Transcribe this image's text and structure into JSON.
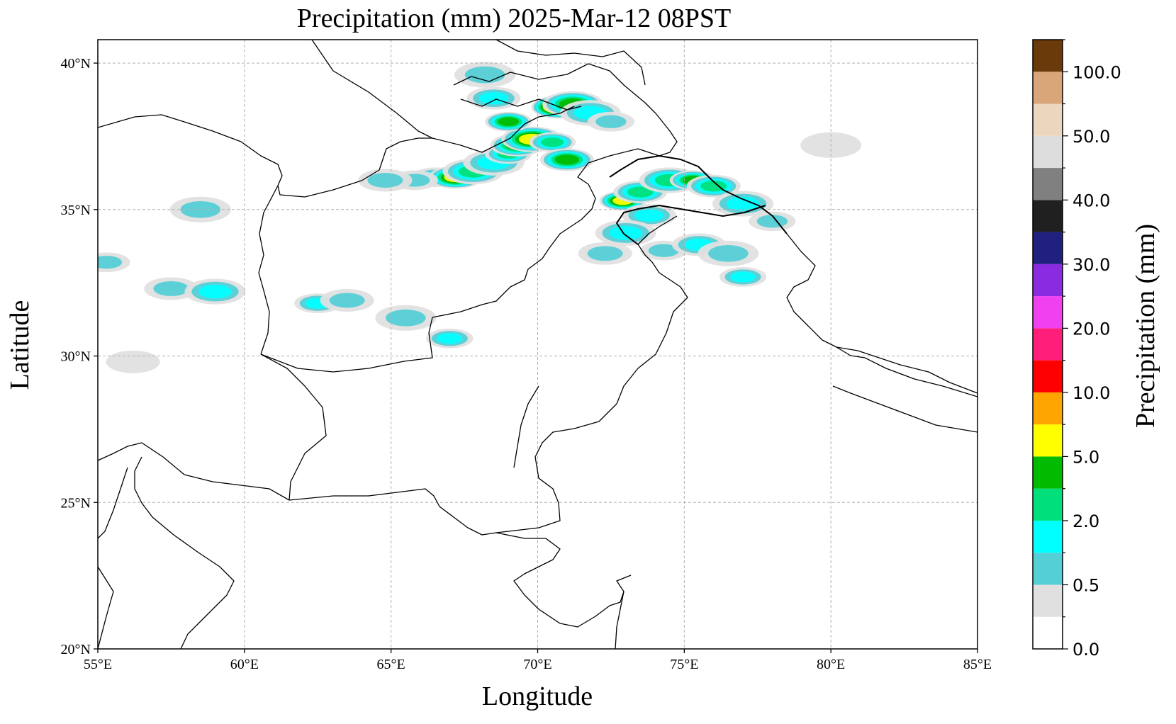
{
  "figure": {
    "title": "Precipitation (mm)  2025-Mar-12 08PST",
    "xlabel": "Longitude",
    "ylabel": "Latitude"
  },
  "chart_data": {
    "type": "heatmap",
    "title": "Precipitation (mm)  2025-Mar-12 08PST",
    "xlabel": "Longitude",
    "ylabel": "Latitude",
    "xlim": [
      55,
      85
    ],
    "ylim": [
      20,
      40.8
    ],
    "grid": true,
    "x_ticks": [
      55,
      60,
      65,
      70,
      75,
      80,
      85
    ],
    "x_tick_labels": [
      "55°E",
      "60°E",
      "65°E",
      "70°E",
      "75°E",
      "80°E",
      "85°E"
    ],
    "y_ticks": [
      20,
      25,
      30,
      35,
      40
    ],
    "y_tick_labels": [
      "20°N",
      "25°N",
      "30°N",
      "35°N",
      "40°N"
    ],
    "colorbar": {
      "label": "Precipitation (mm)",
      "levels": [
        0,
        0.25,
        0.5,
        1,
        2,
        3,
        5,
        7.5,
        10,
        15,
        20,
        25,
        30,
        35,
        40,
        45,
        50,
        60,
        80,
        100
      ],
      "colors": [
        "#ffffff",
        "#e0e0e0",
        "#55cfd6",
        "#00ffff",
        "#00e07a",
        "#00bb00",
        "#ffff00",
        "#ffa500",
        "#ff0000",
        "#ff1f7a",
        "#f040f0",
        "#8a2be2",
        "#202080",
        "#202020",
        "#808080",
        "#dddddd",
        "#edd6be",
        "#d9a67a",
        "#6b3a0a"
      ],
      "tick_labels": [
        "0.0",
        "0.5",
        "2.0",
        "5.0",
        "10.0",
        "20.0",
        "30.0",
        "40.0",
        "50.0",
        "100.0"
      ]
    },
    "cells": [
      {
        "lon": 66.5,
        "lat": 36.1,
        "value": 1.0
      },
      {
        "lon": 67.2,
        "lat": 36.1,
        "value": 5.0
      },
      {
        "lon": 67.8,
        "lat": 36.3,
        "value": 2.0
      },
      {
        "lon": 65.8,
        "lat": 36.0,
        "value": 0.5
      },
      {
        "lon": 64.8,
        "lat": 36.0,
        "value": 0.5
      },
      {
        "lon": 68.5,
        "lat": 36.6,
        "value": 1.0
      },
      {
        "lon": 69.0,
        "lat": 36.9,
        "value": 2.0
      },
      {
        "lon": 69.3,
        "lat": 37.2,
        "value": 3.0
      },
      {
        "lon": 69.8,
        "lat": 37.4,
        "value": 5.0
      },
      {
        "lon": 70.5,
        "lat": 37.3,
        "value": 2.0
      },
      {
        "lon": 70.7,
        "lat": 38.5,
        "value": 10.0
      },
      {
        "lon": 71.2,
        "lat": 38.6,
        "value": 3.0
      },
      {
        "lon": 69.0,
        "lat": 38.0,
        "value": 3.0
      },
      {
        "lon": 68.5,
        "lat": 38.8,
        "value": 1.0
      },
      {
        "lon": 71.8,
        "lat": 38.3,
        "value": 1.0
      },
      {
        "lon": 72.5,
        "lat": 38.0,
        "value": 0.5
      },
      {
        "lon": 71.0,
        "lat": 36.7,
        "value": 3.0
      },
      {
        "lon": 68.2,
        "lat": 39.6,
        "value": 0.5
      },
      {
        "lon": 72.9,
        "lat": 35.3,
        "value": 5.0
      },
      {
        "lon": 73.5,
        "lat": 35.6,
        "value": 2.0
      },
      {
        "lon": 74.5,
        "lat": 36.0,
        "value": 2.0
      },
      {
        "lon": 75.3,
        "lat": 36.0,
        "value": 3.0
      },
      {
        "lon": 76.0,
        "lat": 35.8,
        "value": 2.0
      },
      {
        "lon": 77.0,
        "lat": 35.2,
        "value": 1.0
      },
      {
        "lon": 78.0,
        "lat": 34.6,
        "value": 0.5
      },
      {
        "lon": 73.8,
        "lat": 34.8,
        "value": 1.0
      },
      {
        "lon": 73.0,
        "lat": 34.2,
        "value": 1.0
      },
      {
        "lon": 74.3,
        "lat": 33.6,
        "value": 0.5
      },
      {
        "lon": 75.5,
        "lat": 33.8,
        "value": 1.0
      },
      {
        "lon": 76.5,
        "lat": 33.5,
        "value": 0.5
      },
      {
        "lon": 77.0,
        "lat": 32.7,
        "value": 1.0
      },
      {
        "lon": 72.3,
        "lat": 33.5,
        "value": 0.5
      },
      {
        "lon": 58.5,
        "lat": 35.0,
        "value": 0.5
      },
      {
        "lon": 55.3,
        "lat": 33.2,
        "value": 0.5
      },
      {
        "lon": 57.5,
        "lat": 32.3,
        "value": 0.5
      },
      {
        "lon": 59.0,
        "lat": 32.2,
        "value": 1.0
      },
      {
        "lon": 62.5,
        "lat": 31.8,
        "value": 1.0
      },
      {
        "lon": 63.5,
        "lat": 31.9,
        "value": 0.5
      },
      {
        "lon": 65.5,
        "lat": 31.3,
        "value": 0.5
      },
      {
        "lon": 67.0,
        "lat": 30.6,
        "value": 1.0
      },
      {
        "lon": 56.2,
        "lat": 29.8,
        "value": 0.25
      },
      {
        "lon": 80.0,
        "lat": 37.2,
        "value": 0.25
      }
    ]
  }
}
